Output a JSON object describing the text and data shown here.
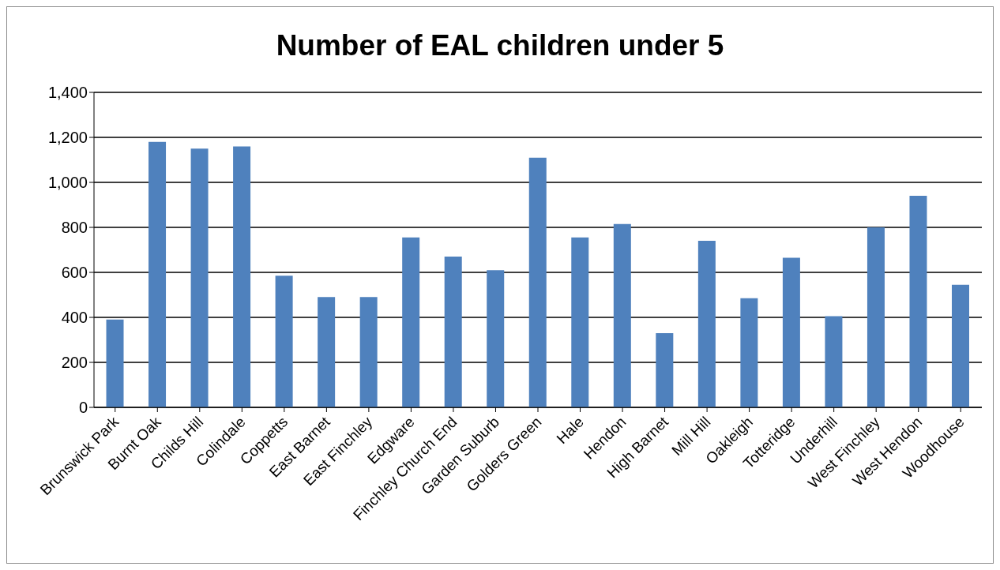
{
  "chart_data": {
    "type": "bar",
    "title": "Number of EAL children under 5",
    "categories": [
      "Brunswick Park",
      "Burnt Oak",
      "Childs Hill",
      "Colindale",
      "Coppetts",
      "East Barnet",
      "East Finchley",
      "Edgware",
      "Finchley Church End",
      "Garden Suburb",
      "Golders Green",
      "Hale",
      "Hendon",
      "High Barnet",
      "Mill Hill",
      "Oakleigh",
      "Totteridge",
      "Underhill",
      "West Finchley",
      "West Hendon",
      "Woodhouse"
    ],
    "values": [
      390,
      1180,
      1150,
      1160,
      585,
      490,
      490,
      755,
      670,
      610,
      1110,
      755,
      815,
      330,
      740,
      485,
      665,
      405,
      800,
      940,
      545
    ],
    "color": "#4f81bd",
    "ylim": [
      0,
      1400
    ],
    "yticks": [
      0,
      200,
      400,
      600,
      800,
      {
        "value": 1000,
        "label": "1,000"
      },
      {
        "value": 1200,
        "label": "1,200"
      },
      {
        "value": 1400,
        "label": "1,400"
      }
    ],
    "grid": "y",
    "legend": false
  }
}
